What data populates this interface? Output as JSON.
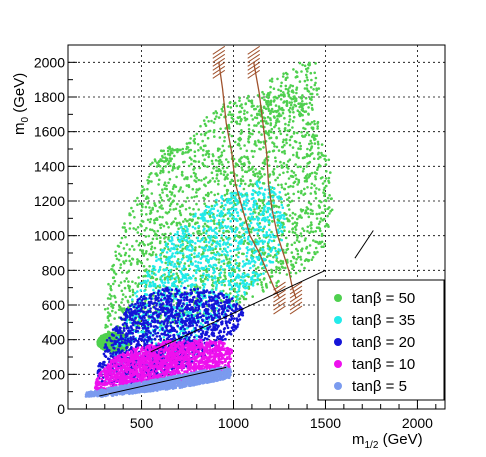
{
  "chart_data": {
    "type": "scatter",
    "title": "",
    "xlabel": {
      "main": "m",
      "sub": "1/2",
      "unit": " (GeV)"
    },
    "ylabel": {
      "main": "m",
      "sub": "0",
      "unit": " (GeV)"
    },
    "xlim": [
      100,
      2150
    ],
    "ylim": [
      0,
      2100
    ],
    "xticks": [
      500,
      1000,
      1500,
      2000
    ],
    "yticks": [
      0,
      200,
      400,
      600,
      800,
      1000,
      1200,
      1400,
      1600,
      1800,
      2000
    ],
    "grid": true,
    "legend_position": "bottom-right",
    "series": [
      {
        "name": "tanβ = 50",
        "color": "#4fd04f",
        "regions": [
          {
            "kind": "poly",
            "poly": [
              [
                300,
                380
              ],
              [
                300,
                560
              ],
              [
                330,
                800
              ],
              [
                380,
                1020
              ],
              [
                470,
                1230
              ],
              [
                560,
                1380
              ],
              [
                650,
                1480
              ],
              [
                750,
                1570
              ],
              [
                860,
                1690
              ],
              [
                960,
                1770
              ],
              [
                1100,
                1820
              ],
              [
                1300,
                1850
              ],
              [
                1430,
                1820
              ],
              [
                1470,
                1600
              ],
              [
                1530,
                1400
              ],
              [
                1540,
                1150
              ],
              [
                1500,
                950
              ],
              [
                1380,
                800
              ],
              [
                1200,
                690
              ],
              [
                1000,
                600
              ],
              [
                760,
                520
              ],
              [
                520,
                440
              ]
            ],
            "count": 2100
          },
          {
            "kind": "poly",
            "poly": [
              [
                1100,
                1600
              ],
              [
                1200,
                1900
              ],
              [
                1340,
                2000
              ],
              [
                1460,
                2000
              ],
              [
                1480,
                1820
              ],
              [
                1380,
                1700
              ]
            ],
            "count": 160
          },
          {
            "kind": "poly",
            "poly": [
              [
                500,
                1400
              ],
              [
                640,
                1520
              ],
              [
                720,
                1500
              ],
              [
                620,
                1380
              ]
            ],
            "count": 40
          },
          {
            "kind": "ellipse",
            "cx": 350,
            "cy": 385,
            "rx": 90,
            "ry": 55,
            "count": 1100
          }
        ]
      },
      {
        "name": "tanβ = 35",
        "color": "#22eaea",
        "regions": [
          {
            "kind": "poly",
            "poly": [
              [
                330,
                260
              ],
              [
                360,
                380
              ],
              [
                400,
                520
              ],
              [
                480,
                700
              ],
              [
                580,
                880
              ],
              [
                680,
                1020
              ],
              [
                800,
                1140
              ],
              [
                920,
                1230
              ],
              [
                1000,
                1280
              ],
              [
                1160,
                1320
              ],
              [
                1250,
                1260
              ],
              [
                1290,
                1100
              ],
              [
                1270,
                920
              ],
              [
                1150,
                760
              ],
              [
                1010,
                600
              ],
              [
                880,
                460
              ],
              [
                720,
                340
              ],
              [
                560,
                260
              ],
              [
                420,
                230
              ]
            ],
            "count": 1300
          }
        ]
      },
      {
        "name": "tanβ = 20",
        "color": "#1414d8",
        "regions": [
          {
            "kind": "poly",
            "poly": [
              [
                250,
                140
              ],
              [
                270,
                270
              ],
              [
                320,
                420
              ],
              [
                400,
                560
              ],
              [
                500,
                650
              ],
              [
                640,
                700
              ],
              [
                780,
                700
              ],
              [
                900,
                680
              ],
              [
                1000,
                640
              ],
              [
                1060,
                560
              ],
              [
                1010,
                450
              ],
              [
                900,
                340
              ],
              [
                760,
                250
              ],
              [
                600,
                180
              ],
              [
                430,
                140
              ]
            ],
            "count": 1600
          }
        ]
      },
      {
        "name": "tanβ = 10",
        "color": "#ee10ee",
        "regions": [
          {
            "kind": "poly",
            "poly": [
              [
                240,
                100
              ],
              [
                260,
                190
              ],
              [
                340,
                290
              ],
              [
                460,
                350
              ],
              [
                620,
                390
              ],
              [
                780,
                400
              ],
              [
                940,
                390
              ],
              [
                1000,
                330
              ],
              [
                980,
                230
              ],
              [
                860,
                170
              ],
              [
                680,
                140
              ],
              [
                500,
                120
              ],
              [
                340,
                100
              ]
            ],
            "count": 1900
          }
        ]
      },
      {
        "name": "tanβ = 5",
        "color": "#7b9bef",
        "regions": [
          {
            "kind": "poly",
            "poly": [
              [
                190,
                70
              ],
              [
                200,
                95
              ],
              [
                400,
                135
              ],
              [
                600,
                175
              ],
              [
                800,
                215
              ],
              [
                960,
                245
              ],
              [
                990,
                225
              ],
              [
                980,
                180
              ],
              [
                900,
                160
              ],
              [
                700,
                120
              ],
              [
                500,
                95
              ],
              [
                300,
                72
              ]
            ],
            "count": 1400
          }
        ]
      }
    ],
    "contours": [
      {
        "color": "#a0522d",
        "points": [
          [
            920,
            2000
          ],
          [
            940,
            1850
          ],
          [
            960,
            1650
          ],
          [
            990,
            1480
          ],
          [
            1010,
            1300
          ],
          [
            1050,
            1150
          ],
          [
            1090,
            1000
          ],
          [
            1140,
            900
          ],
          [
            1180,
            800
          ],
          [
            1220,
            700
          ],
          [
            1250,
            640
          ]
        ]
      },
      {
        "color": "#a0522d",
        "points": [
          [
            1110,
            2000
          ],
          [
            1140,
            1820
          ],
          [
            1160,
            1650
          ],
          [
            1180,
            1480
          ],
          [
            1190,
            1300
          ],
          [
            1210,
            1150
          ],
          [
            1240,
            1000
          ],
          [
            1270,
            900
          ],
          [
            1300,
            800
          ],
          [
            1320,
            700
          ],
          [
            1340,
            640
          ]
        ]
      }
    ],
    "black_lines": [
      {
        "points": [
          [
            270,
            75
          ],
          [
            960,
            240
          ]
        ]
      },
      {
        "points": [
          [
            550,
            330
          ],
          [
            1500,
            800
          ]
        ]
      },
      {
        "points": [
          [
            1660,
            870
          ],
          [
            1760,
            1030
          ]
        ]
      }
    ]
  },
  "legend": {
    "items": [
      {
        "label": "tanβ = 50",
        "color": "#4fd04f"
      },
      {
        "label": "tanβ = 35",
        "color": "#22eaea"
      },
      {
        "label": "tanβ = 20",
        "color": "#1414d8"
      },
      {
        "label": "tanβ = 10",
        "color": "#ee10ee"
      },
      {
        "label": "tanβ = 5",
        "color": "#7b9bef"
      }
    ]
  }
}
